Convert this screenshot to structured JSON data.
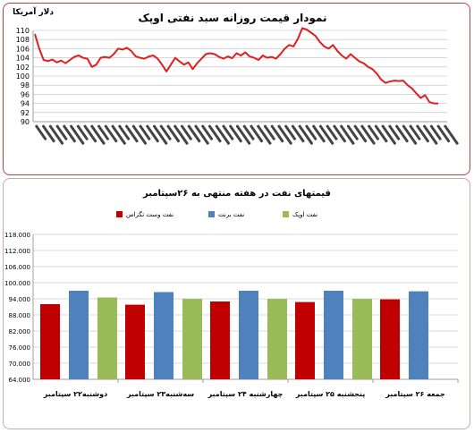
{
  "chart_data": [
    {
      "type": "line",
      "title": "نمودار قیمت روزانه سبد نفتی اوپک",
      "ylabel": "دلار آمریکا",
      "ylim": [
        90,
        110
      ],
      "yticks": [
        "110",
        "108",
        "106",
        "104",
        "102",
        "100",
        "98",
        "96",
        "94",
        "92",
        "90"
      ],
      "grid": true,
      "line_color": "#e02020",
      "xtick_count": 60,
      "series": [
        {
          "values": [
            109.2,
            106.0,
            103.5,
            103.3,
            103.6,
            103.0,
            103.4,
            102.8,
            103.5,
            104.2,
            104.5,
            104.0,
            103.8,
            102.0,
            102.5,
            104.0,
            104.2,
            104.0,
            104.8,
            106.0,
            105.8,
            106.2,
            105.5,
            104.3,
            104.0,
            103.8,
            104.3,
            104.5,
            103.8,
            102.5,
            101.0,
            102.5,
            104.0,
            103.2,
            102.5,
            103.0,
            101.5,
            102.8,
            103.8,
            104.8,
            105.0,
            104.8,
            104.2,
            103.8,
            104.3,
            103.9,
            105.0,
            104.5,
            105.2,
            104.3,
            104.0,
            103.5,
            104.5,
            104.0,
            104.2,
            103.8,
            104.8,
            106.0,
            106.8,
            106.5,
            108.2,
            110.5,
            110.2,
            109.5,
            108.8,
            107.5,
            106.5,
            106.0,
            106.8,
            105.5,
            104.5,
            103.8,
            104.8,
            104.0,
            103.2,
            102.8,
            102.0,
            101.5,
            100.5,
            99.2,
            98.5,
            98.8,
            99.0,
            98.9,
            99.0,
            98.0,
            97.3,
            96.2,
            95.2,
            95.8,
            94.3,
            94.0,
            94.0
          ]
        }
      ]
    },
    {
      "type": "bar",
      "title": "قیمتهای نفت در هفته منتهی به ۲۶سپتامبر",
      "categories": [
        "دوشنبه۲۲ سپتامبر",
        "سه‌شنبه۲۳ سپتامبر",
        "چهارشنبه ۲۴ سپتامبر",
        "پنجشنبه ۲۵ سپتامبر",
        "جمعه ۲۶ سپتامبر"
      ],
      "ylim": [
        64000,
        118000
      ],
      "yticks": [
        "118.000",
        "112.000",
        "106.000",
        "100.000",
        "94.000",
        "88.000",
        "82.000",
        "76.000",
        "70.000",
        "64.000"
      ],
      "grid": true,
      "legend_position": "top",
      "series": [
        {
          "name": "نفت وست تگزاس",
          "color": "#c00000",
          "values": [
            92000,
            91800,
            93000,
            92800,
            93800
          ]
        },
        {
          "name": "نفت برنت",
          "color": "#4f81bd",
          "values": [
            97000,
            96500,
            97000,
            97000,
            96800
          ]
        },
        {
          "name": "نفت اوپک",
          "color": "#9bbb59",
          "values": [
            94500,
            94000,
            94000,
            94000,
            null
          ]
        }
      ]
    }
  ]
}
